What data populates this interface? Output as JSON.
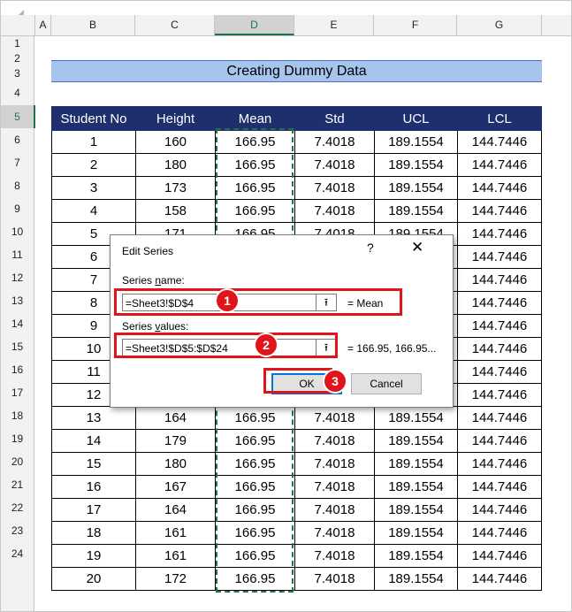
{
  "column_headers": [
    "A",
    "B",
    "C",
    "D",
    "E",
    "F",
    "G"
  ],
  "row_numbers": [
    "1",
    "2",
    "3",
    "4",
    "5",
    "6",
    "7",
    "8",
    "9",
    "10",
    "11",
    "12",
    "13",
    "14",
    "15",
    "16",
    "17",
    "18",
    "19",
    "20",
    "21",
    "22",
    "23",
    "24"
  ],
  "title": "Creating Dummy Data",
  "table": {
    "headers": [
      "Student No",
      "Height",
      "Mean",
      "Std",
      "UCL",
      "LCL"
    ],
    "rows": [
      [
        "1",
        "160",
        "166.95",
        "7.4018",
        "189.1554",
        "144.7446"
      ],
      [
        "2",
        "180",
        "166.95",
        "7.4018",
        "189.1554",
        "144.7446"
      ],
      [
        "3",
        "173",
        "166.95",
        "7.4018",
        "189.1554",
        "144.7446"
      ],
      [
        "4",
        "158",
        "166.95",
        "7.4018",
        "189.1554",
        "144.7446"
      ],
      [
        "5",
        "171",
        "166.95",
        "7.4018",
        "189.1554",
        "144.7446"
      ],
      [
        "6",
        "",
        "",
        "",
        "",
        "144.7446"
      ],
      [
        "7",
        "",
        "",
        "",
        "",
        "144.7446"
      ],
      [
        "8",
        "",
        "",
        "",
        "",
        "144.7446"
      ],
      [
        "9",
        "",
        "",
        "",
        "",
        "144.7446"
      ],
      [
        "10",
        "",
        "",
        "",
        "",
        "144.7446"
      ],
      [
        "11",
        "",
        "",
        "",
        "",
        "144.7446"
      ],
      [
        "12",
        "",
        "",
        "",
        "",
        "144.7446"
      ],
      [
        "13",
        "164",
        "166.95",
        "7.4018",
        "189.1554",
        "144.7446"
      ],
      [
        "14",
        "179",
        "166.95",
        "7.4018",
        "189.1554",
        "144.7446"
      ],
      [
        "15",
        "180",
        "166.95",
        "7.4018",
        "189.1554",
        "144.7446"
      ],
      [
        "16",
        "167",
        "166.95",
        "7.4018",
        "189.1554",
        "144.7446"
      ],
      [
        "17",
        "164",
        "166.95",
        "7.4018",
        "189.1554",
        "144.7446"
      ],
      [
        "18",
        "161",
        "166.95",
        "7.4018",
        "189.1554",
        "144.7446"
      ],
      [
        "19",
        "161",
        "166.95",
        "7.4018",
        "189.1554",
        "144.7446"
      ],
      [
        "20",
        "172",
        "166.95",
        "7.4018",
        "189.1554",
        "144.7446"
      ]
    ]
  },
  "dialog": {
    "title": "Edit Series",
    "help": "?",
    "close": "✕",
    "series_name_label_pre": "Series ",
    "series_name_label_ul": "n",
    "series_name_label_post": "ame:",
    "series_name_value": "=Sheet3!$D$4",
    "series_name_preview": "= Mean",
    "series_values_label_pre": "Series ",
    "series_values_label_ul": "v",
    "series_values_label_post": "alues:",
    "series_values_value": "=Sheet3!$D$5:$D$24",
    "series_values_preview": "= 166.95, 166.95...",
    "ok_label": "OK",
    "cancel_label": "Cancel",
    "collapse_icon": "⭱"
  },
  "badges": [
    "1",
    "2",
    "3"
  ],
  "colors": {
    "accent": "#217346",
    "header_fill": "#1f2f6e",
    "title_fill": "#a6c4ed",
    "callout": "#e0141b"
  }
}
